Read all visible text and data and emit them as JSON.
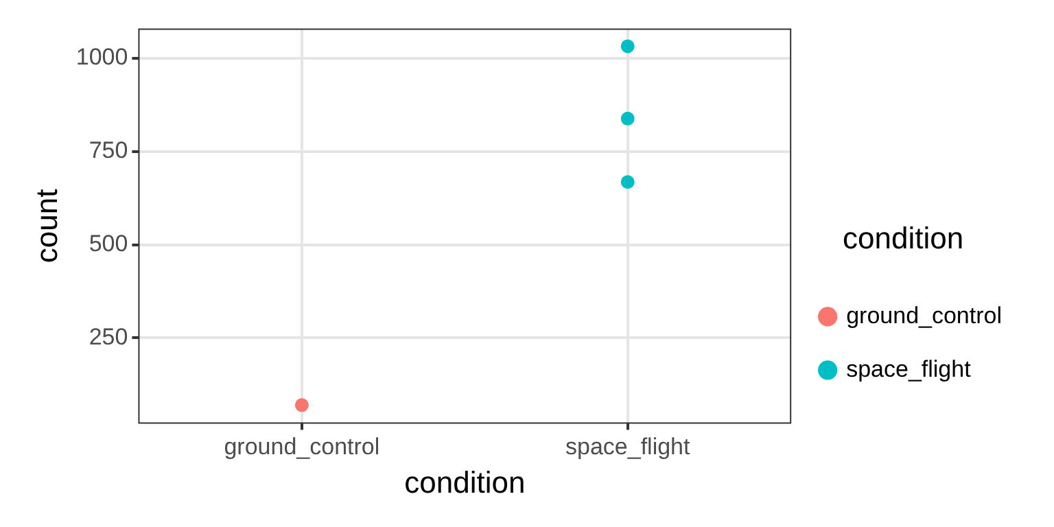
{
  "chart_data": {
    "type": "scatter",
    "xlabel": "condition",
    "ylabel": "count",
    "legend_title": "condition",
    "categories": [
      "ground_control",
      "space_flight"
    ],
    "series": [
      {
        "name": "ground_control",
        "color": "#f8766d",
        "x": [
          "ground_control"
        ],
        "values": [
          70
        ]
      },
      {
        "name": "space_flight",
        "color": "#00bfc4",
        "x": [
          "space_flight",
          "space_flight",
          "space_flight"
        ],
        "values": [
          1032,
          838,
          668
        ]
      }
    ],
    "ylim": [
      22,
      1078
    ],
    "yticks": [
      250,
      500,
      750,
      1000
    ],
    "grid": true,
    "legend": "right",
    "marker": "circle"
  }
}
